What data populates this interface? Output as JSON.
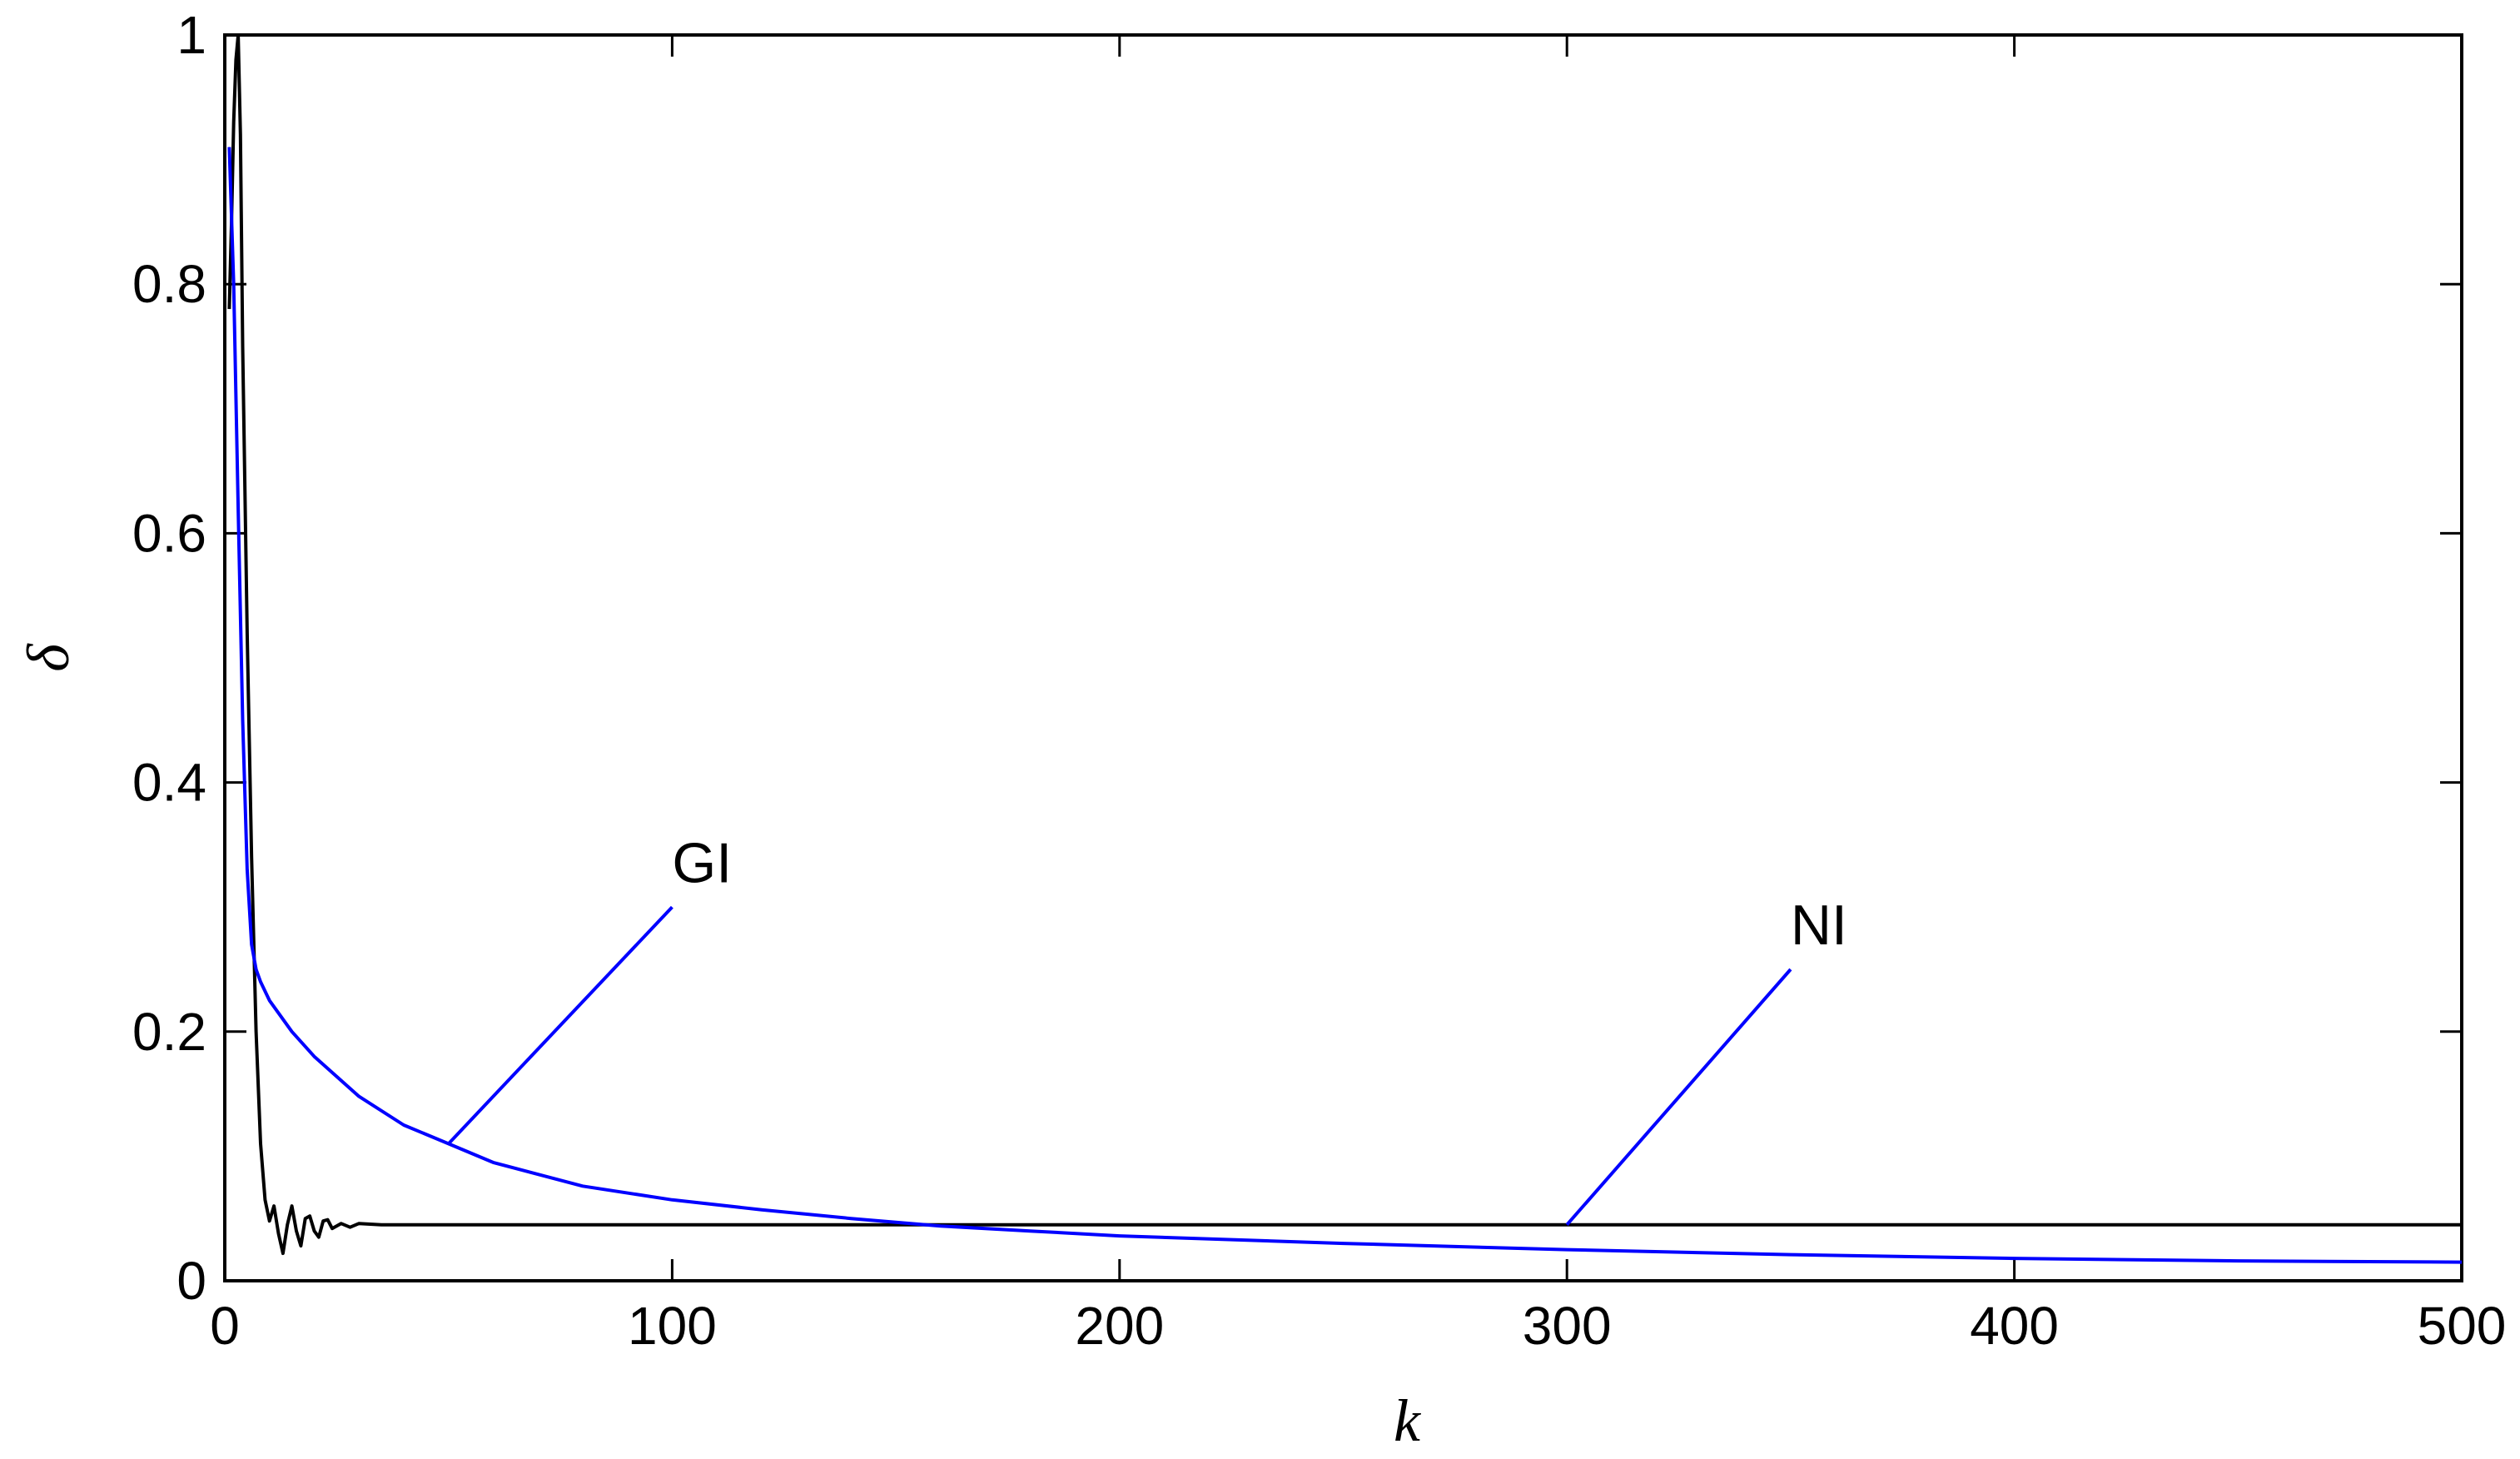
{
  "chart_data": {
    "type": "line",
    "title": "",
    "xlabel": "k",
    "ylabel": "δ",
    "xlim": [
      0,
      500
    ],
    "ylim": [
      0,
      1
    ],
    "grid": false,
    "legend": "none",
    "x_ticks": [
      0,
      100,
      200,
      300,
      400,
      500
    ],
    "x_tick_labels": [
      "0",
      "100",
      "200",
      "300",
      "400",
      "500"
    ],
    "y_ticks": [
      0,
      0.2,
      0.4,
      0.6,
      0.8,
      1
    ],
    "y_tick_labels": [
      "0",
      "0.2",
      "0.4",
      "0.6",
      "0.8",
      "1"
    ],
    "series": [
      {
        "color": "#000000",
        "points": [
          [
            1,
            0.78
          ],
          [
            1.5,
            0.85
          ],
          [
            2,
            0.93
          ],
          [
            2.5,
            0.98
          ],
          [
            3,
            1.0
          ],
          [
            3.5,
            0.92
          ],
          [
            4,
            0.75
          ],
          [
            5,
            0.52
          ],
          [
            6,
            0.34
          ],
          [
            7,
            0.2
          ],
          [
            8,
            0.11
          ],
          [
            9,
            0.065
          ],
          [
            10,
            0.048
          ],
          [
            11,
            0.06
          ],
          [
            12,
            0.038
          ],
          [
            13,
            0.022
          ],
          [
            14,
            0.045
          ],
          [
            15,
            0.06
          ],
          [
            16,
            0.04
          ],
          [
            17,
            0.028
          ],
          [
            18,
            0.05
          ],
          [
            19,
            0.052
          ],
          [
            20,
            0.04
          ],
          [
            21,
            0.035
          ],
          [
            22,
            0.048
          ],
          [
            23,
            0.049
          ],
          [
            24,
            0.042
          ],
          [
            26,
            0.046
          ],
          [
            28,
            0.043
          ],
          [
            30,
            0.046
          ],
          [
            35,
            0.045
          ],
          [
            40,
            0.045
          ],
          [
            60,
            0.045
          ],
          [
            100,
            0.045
          ],
          [
            200,
            0.045
          ],
          [
            300,
            0.045
          ],
          [
            400,
            0.045
          ],
          [
            500,
            0.045
          ]
        ]
      },
      {
        "color": "#0000ff",
        "points": [
          [
            1,
            0.91
          ],
          [
            2,
            0.8
          ],
          [
            3,
            0.62
          ],
          [
            4,
            0.45
          ],
          [
            5,
            0.33
          ],
          [
            6,
            0.27
          ],
          [
            7,
            0.25
          ],
          [
            8,
            0.24
          ],
          [
            10,
            0.225
          ],
          [
            15,
            0.2
          ],
          [
            20,
            0.18
          ],
          [
            30,
            0.148
          ],
          [
            40,
            0.125
          ],
          [
            50,
            0.11
          ],
          [
            60,
            0.095
          ],
          [
            80,
            0.076
          ],
          [
            100,
            0.065
          ],
          [
            120,
            0.057
          ],
          [
            140,
            0.05
          ],
          [
            160,
            0.044
          ],
          [
            180,
            0.04
          ],
          [
            200,
            0.036
          ],
          [
            250,
            0.03
          ],
          [
            300,
            0.025
          ],
          [
            350,
            0.021
          ],
          [
            400,
            0.018
          ],
          [
            450,
            0.016
          ],
          [
            500,
            0.015
          ]
        ]
      }
    ],
    "annotations": [
      {
        "text": "GI",
        "text_at": [
          100,
          0.32
        ],
        "leader_from": [
          50,
          0.11
        ],
        "leader_to": [
          100,
          0.3
        ]
      },
      {
        "text": "NI",
        "text_at": [
          350,
          0.27
        ],
        "leader_from": [
          300,
          0.045
        ],
        "leader_to": [
          350,
          0.25
        ]
      }
    ]
  }
}
